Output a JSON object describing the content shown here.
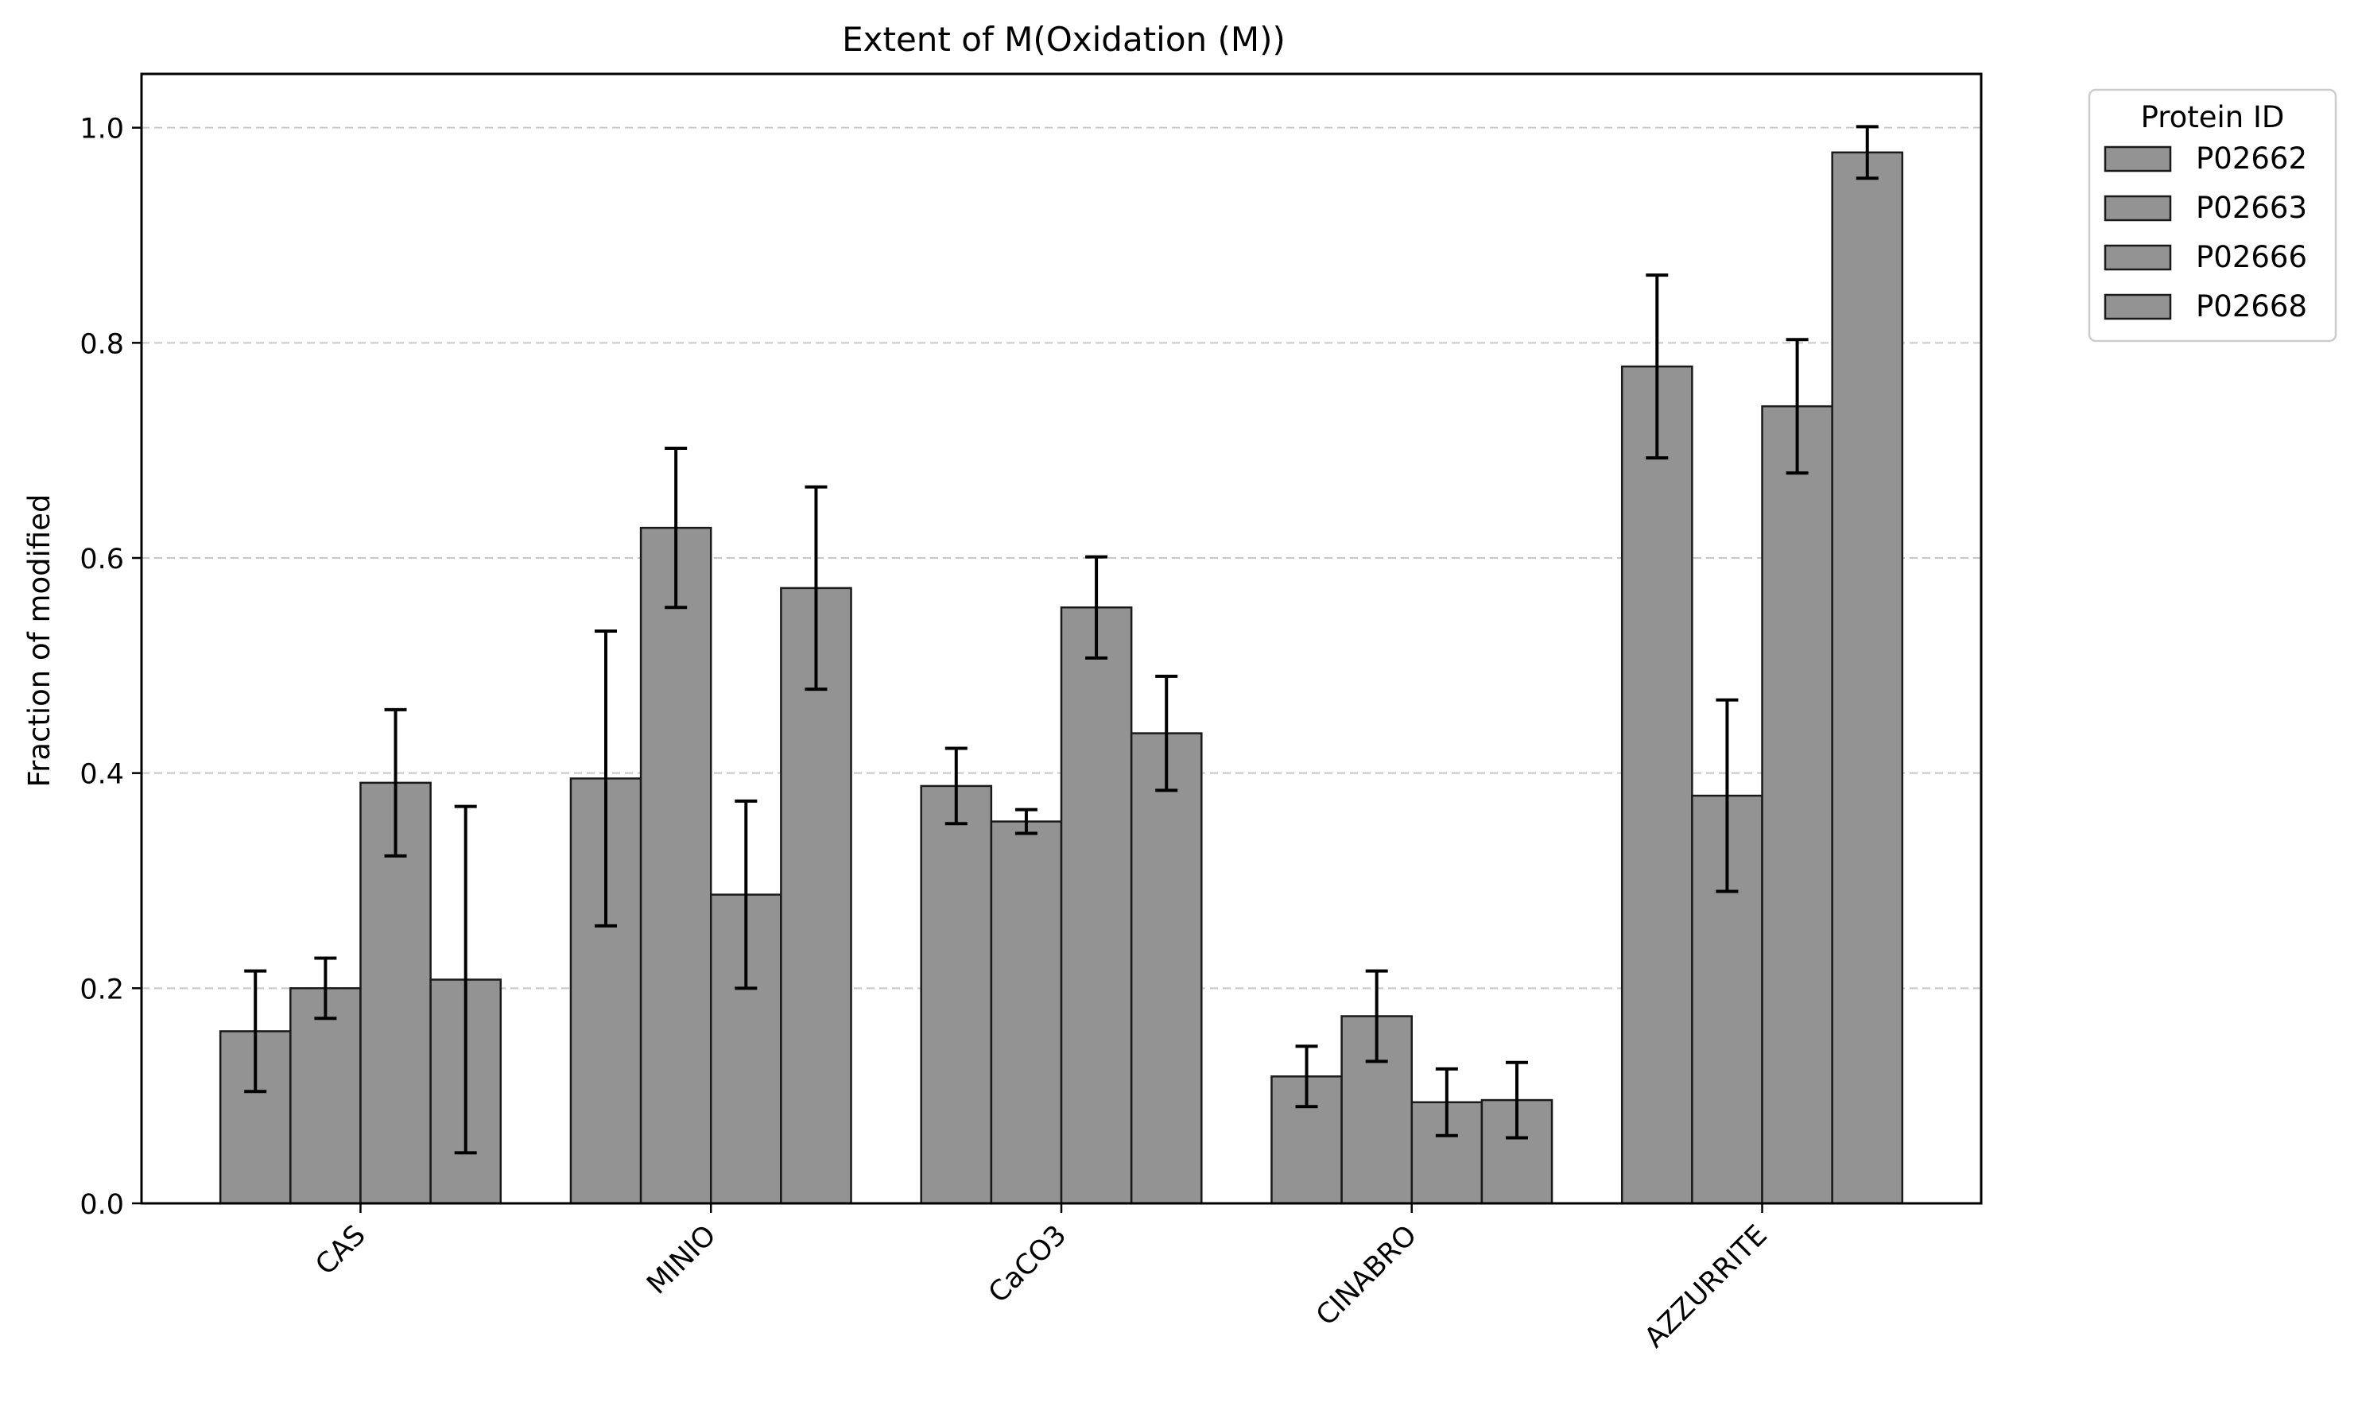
{
  "chart_data": {
    "type": "bar",
    "title": "Extent of M(Oxidation (M))",
    "xlabel": "",
    "ylabel": "Fraction of modified",
    "ylim": [
      0,
      1.05
    ],
    "yticks": [
      "0.0",
      "0.2",
      "0.4",
      "0.6",
      "0.8",
      "1.0"
    ],
    "grid": "y-dashed",
    "categories": [
      "CAS",
      "MINIO",
      "CaCO3",
      "CINABRO",
      "AZZURRITE"
    ],
    "legend": {
      "title": "Protein ID",
      "placement": "outside-top-right"
    },
    "bar_color": "#939393",
    "series": [
      {
        "name": "P02662",
        "values": [
          0.16,
          0.395,
          0.388,
          0.118,
          0.778
        ],
        "errors": [
          0.056,
          0.137,
          0.035,
          0.028,
          0.085
        ]
      },
      {
        "name": "P02663",
        "values": [
          0.2,
          0.628,
          0.355,
          0.174,
          0.379
        ],
        "errors": [
          0.028,
          0.074,
          0.011,
          0.042,
          0.089
        ]
      },
      {
        "name": "P02666",
        "values": [
          0.391,
          0.287,
          0.554,
          0.094,
          0.741
        ],
        "errors": [
          0.068,
          0.087,
          0.047,
          0.031,
          0.062
        ]
      },
      {
        "name": "P02668",
        "values": [
          0.208,
          0.572,
          0.437,
          0.096,
          0.977
        ],
        "errors": [
          0.161,
          0.094,
          0.053,
          0.035,
          0.024
        ]
      }
    ]
  }
}
